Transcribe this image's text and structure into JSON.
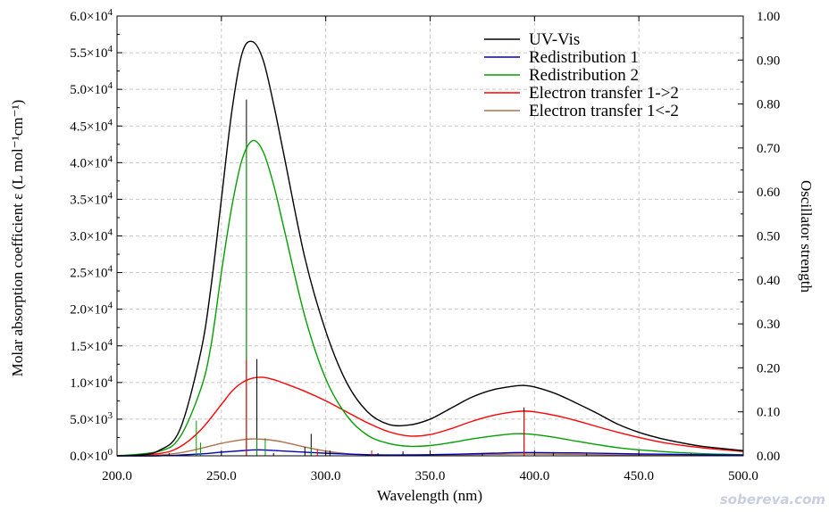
{
  "chart_data": {
    "type": "line",
    "xlabel": "Wavelength (nm)",
    "ylabel_left": "Molar absorption coefficient  ε (L mol⁻¹cm⁻¹)",
    "ylabel_right": "Oscillator strength",
    "xlim": [
      200,
      500
    ],
    "ylim_left": [
      0,
      60000
    ],
    "ylim_right": [
      0,
      1.0
    ],
    "grid": true,
    "legend_position": "top-right",
    "x_ticks": [
      "200.0",
      "250.0",
      "300.0",
      "350.0",
      "400.0",
      "450.0",
      "500.0"
    ],
    "y_left_ticks": [
      {
        "value": 0,
        "mant": "0.0",
        "exp": "0"
      },
      {
        "value": 5000,
        "mant": "5.0",
        "exp": "3"
      },
      {
        "value": 10000,
        "mant": "1.0",
        "exp": "4"
      },
      {
        "value": 15000,
        "mant": "1.5",
        "exp": "4"
      },
      {
        "value": 20000,
        "mant": "2.0",
        "exp": "4"
      },
      {
        "value": 25000,
        "mant": "2.5",
        "exp": "4"
      },
      {
        "value": 30000,
        "mant": "3.0",
        "exp": "4"
      },
      {
        "value": 35000,
        "mant": "3.5",
        "exp": "4"
      },
      {
        "value": 40000,
        "mant": "4.0",
        "exp": "4"
      },
      {
        "value": 45000,
        "mant": "4.5",
        "exp": "4"
      },
      {
        "value": 50000,
        "mant": "5.0",
        "exp": "4"
      },
      {
        "value": 55000,
        "mant": "5.5",
        "exp": "4"
      },
      {
        "value": 60000,
        "mant": "6.0",
        "exp": "4"
      }
    ],
    "y_right_ticks": [
      "0.00",
      "0.10",
      "0.20",
      "0.30",
      "0.40",
      "0.50",
      "0.60",
      "0.70",
      "0.80",
      "0.90",
      "1.00"
    ],
    "series": [
      {
        "name": "UV-Vis",
        "color": "#000000",
        "x": [
          200,
          210,
          220,
          230,
          240,
          245,
          250,
          255,
          260,
          265,
          270,
          275,
          280,
          290,
          300,
          310,
          320,
          330,
          340,
          350,
          360,
          370,
          380,
          390,
          395,
          400,
          410,
          420,
          430,
          440,
          450,
          460,
          470,
          480,
          490,
          500
        ],
        "y": [
          0,
          100,
          700,
          3500,
          14000,
          23000,
          35000,
          47000,
          55000,
          56500,
          54000,
          48000,
          41000,
          27000,
          17000,
          10000,
          6000,
          4300,
          4200,
          5000,
          6500,
          8000,
          9000,
          9500,
          9600,
          9400,
          8500,
          7200,
          5800,
          4300,
          3200,
          2400,
          1800,
          1300,
          1000,
          700
        ]
      },
      {
        "name": "Redistribution 1",
        "color": "#0000c0",
        "x": [
          200,
          220,
          240,
          250,
          260,
          265,
          270,
          280,
          300,
          320,
          340,
          360,
          380,
          395,
          420,
          450,
          500
        ],
        "y": [
          0,
          0,
          250,
          500,
          700,
          800,
          800,
          650,
          350,
          150,
          120,
          200,
          350,
          450,
          400,
          250,
          100
        ]
      },
      {
        "name": "Redistribution 2",
        "color": "#00a000",
        "x": [
          200,
          220,
          230,
          240,
          245,
          250,
          255,
          260,
          265,
          270,
          275,
          280,
          290,
          300,
          310,
          320,
          330,
          340,
          350,
          360,
          370,
          380,
          390,
          395,
          400,
          410,
          420,
          440,
          460,
          480,
          500
        ],
        "y": [
          0,
          600,
          2500,
          9000,
          15000,
          25000,
          34000,
          40500,
          43000,
          41500,
          37000,
          31000,
          19000,
          10500,
          5500,
          2800,
          1700,
          1300,
          1400,
          1800,
          2300,
          2700,
          3000,
          3000,
          2900,
          2500,
          2000,
          1100,
          600,
          300,
          150
        ]
      },
      {
        "name": "Electron transfer 1->2",
        "color": "#ff0000",
        "x": [
          200,
          220,
          230,
          240,
          250,
          255,
          260,
          265,
          270,
          275,
          280,
          290,
          300,
          310,
          320,
          330,
          340,
          350,
          360,
          370,
          380,
          390,
          395,
          400,
          410,
          420,
          440,
          460,
          480,
          500
        ],
        "y": [
          0,
          300,
          1200,
          3500,
          7000,
          8800,
          10000,
          10600,
          10700,
          10400,
          9900,
          8800,
          7500,
          6000,
          4500,
          3300,
          2700,
          2900,
          3700,
          4700,
          5500,
          6000,
          6100,
          6000,
          5500,
          4800,
          3200,
          1900,
          1100,
          600
        ]
      },
      {
        "name": "Electron transfer 1<-2",
        "color": "#b07050",
        "x": [
          200,
          220,
          230,
          240,
          250,
          260,
          265,
          270,
          275,
          280,
          290,
          300,
          310,
          320,
          340,
          360,
          380,
          395,
          420,
          450,
          500
        ],
        "y": [
          0,
          100,
          400,
          1000,
          1700,
          2200,
          2300,
          2250,
          2100,
          1850,
          1200,
          650,
          300,
          150,
          100,
          150,
          200,
          250,
          200,
          100,
          40
        ]
      }
    ],
    "oscillator_sticks": [
      {
        "x": 238,
        "f": 0.08,
        "color": "#00a000"
      },
      {
        "x": 240,
        "f": 0.03,
        "color": "#00a000"
      },
      {
        "x": 262,
        "f": 0.81,
        "color": "#000000"
      },
      {
        "x": 262,
        "f": 0.71,
        "color": "#00a000"
      },
      {
        "x": 262,
        "f": 0.22,
        "color": "#ff0000"
      },
      {
        "x": 267,
        "f": 0.22,
        "color": "#000000"
      },
      {
        "x": 267,
        "f": 0.04,
        "color": "#00a000"
      },
      {
        "x": 271,
        "f": 0.04,
        "color": "#00a000"
      },
      {
        "x": 290,
        "f": 0.02,
        "color": "#000000"
      },
      {
        "x": 293,
        "f": 0.05,
        "color": "#000000"
      },
      {
        "x": 293,
        "f": 0.02,
        "color": "#00a000"
      },
      {
        "x": 296,
        "f": 0.015,
        "color": "#ff0000"
      },
      {
        "x": 302,
        "f": 0.012,
        "color": "#000000"
      },
      {
        "x": 322,
        "f": 0.012,
        "color": "#ff0000"
      },
      {
        "x": 337,
        "f": 0.01,
        "color": "#000000"
      },
      {
        "x": 395,
        "f": 0.11,
        "color": "#000000"
      },
      {
        "x": 395,
        "f": 0.1,
        "color": "#ff0000"
      },
      {
        "x": 409,
        "f": 0.008,
        "color": "#000000"
      }
    ]
  },
  "watermark": "sobereva.com"
}
